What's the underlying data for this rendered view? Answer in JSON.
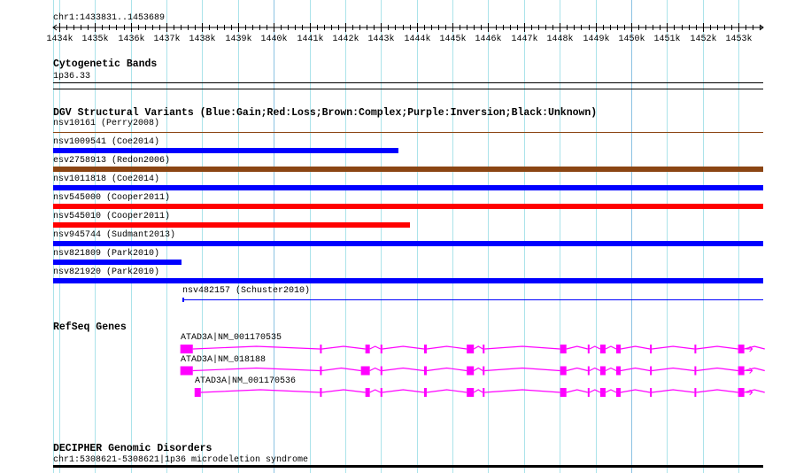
{
  "view": {
    "chrom": "chr1",
    "start": 1433831,
    "end": 1453689,
    "title": "chr1:1433831..1453689"
  },
  "ruler": {
    "ticks": [
      "1434k",
      "1435k",
      "1436k",
      "1437k",
      "1438k",
      "1439k",
      "1440k",
      "1441k",
      "1442k",
      "1443k",
      "1444k",
      "1445k",
      "1446k",
      "1447k",
      "1448k",
      "1449k",
      "1450k",
      "1451k",
      "1452k",
      "1453k"
    ]
  },
  "colors": {
    "grid": "#abe3ea",
    "grid_major": "#8cc3e3",
    "gain": "#0000ff",
    "loss": "#ff0000",
    "complex": "#8b4513",
    "gene": "#ff00ff"
  },
  "cyto": {
    "title": "Cytogenetic Bands",
    "band": "1p36.33"
  },
  "dgv": {
    "title": "DGV Structural Variants (Blue:Gain;Red:Loss;Brown:Complex;Purple:Inversion;Black:Unknown)",
    "variants": [
      {
        "label": "nsv10161 (Perry2008)",
        "type": "complex",
        "start": 1433831,
        "end": 1453689,
        "thin": true
      },
      {
        "label": "nsv1009541 (Coe2014)",
        "type": "gain",
        "start": 1433831,
        "end": 1443492
      },
      {
        "label": "esv2758913 (Redon2006)",
        "type": "complex",
        "start": 1433831,
        "end": 1453689
      },
      {
        "label": "nsv1011818 (Coe2014)",
        "type": "gain",
        "start": 1433831,
        "end": 1453689
      },
      {
        "label": "nsv545000 (Cooper2011)",
        "type": "loss",
        "start": 1433831,
        "end": 1453689
      },
      {
        "label": "nsv545010 (Cooper2011)",
        "type": "loss",
        "start": 1433831,
        "end": 1443815
      },
      {
        "label": "nsv945744 (Sudmant2013)",
        "type": "gain",
        "start": 1433831,
        "end": 1453689
      },
      {
        "label": "nsv821809 (Park2010)",
        "type": "gain",
        "start": 1433831,
        "end": 1437413
      },
      {
        "label": "nsv821920 (Park2010)",
        "type": "gain",
        "start": 1433831,
        "end": 1453689
      },
      {
        "label": "nsv482157 (Schuster2010)",
        "type": "gain",
        "start": 1437438,
        "end": 1453689,
        "thin": true
      }
    ]
  },
  "refseq": {
    "title": "RefSeq Genes",
    "genes": [
      {
        "label": "ATAD3A|NM_001170535",
        "exons": [
          [
            1437388,
            1437737
          ],
          [
            1441294,
            1441344
          ],
          [
            1442563,
            1442687
          ],
          [
            1442986,
            1443036
          ],
          [
            1444204,
            1444279
          ],
          [
            1445398,
            1445597
          ],
          [
            1445846,
            1445896
          ],
          [
            1448010,
            1448185
          ],
          [
            1448782,
            1448832
          ],
          [
            1449130,
            1449280
          ],
          [
            1449578,
            1449702
          ],
          [
            1450523,
            1450573
          ],
          [
            1451767,
            1451817
          ],
          [
            1452986,
            1453160
          ]
        ],
        "end": 1453732
      },
      {
        "label": "ATAD3A|NM_018188",
        "exons": [
          [
            1437388,
            1437737
          ],
          [
            1441294,
            1441344
          ],
          [
            1442439,
            1442687
          ],
          [
            1442986,
            1443036
          ],
          [
            1444204,
            1444279
          ],
          [
            1445398,
            1445597
          ],
          [
            1445846,
            1445896
          ],
          [
            1448010,
            1448185
          ],
          [
            1448782,
            1448832
          ],
          [
            1449130,
            1449280
          ],
          [
            1449578,
            1449702
          ],
          [
            1450523,
            1450573
          ],
          [
            1451767,
            1451817
          ],
          [
            1452986,
            1453160
          ]
        ],
        "end": 1453732
      },
      {
        "label": "ATAD3A|NM_001170536",
        "exons": [
          [
            1437787,
            1437961
          ],
          [
            1441294,
            1441344
          ],
          [
            1442563,
            1442687
          ],
          [
            1442986,
            1443036
          ],
          [
            1444204,
            1444279
          ],
          [
            1445398,
            1445597
          ],
          [
            1445846,
            1445896
          ],
          [
            1448010,
            1448185
          ],
          [
            1448782,
            1448832
          ],
          [
            1449130,
            1449280
          ],
          [
            1449578,
            1449702
          ],
          [
            1450523,
            1450573
          ],
          [
            1451767,
            1451817
          ],
          [
            1452986,
            1453160
          ]
        ],
        "end": 1453732
      }
    ]
  },
  "decipher": {
    "title": "DECIPHER Genomic Disorders",
    "label": "chr1:5308621-5308621|1p36 microdeletion syndrome"
  }
}
